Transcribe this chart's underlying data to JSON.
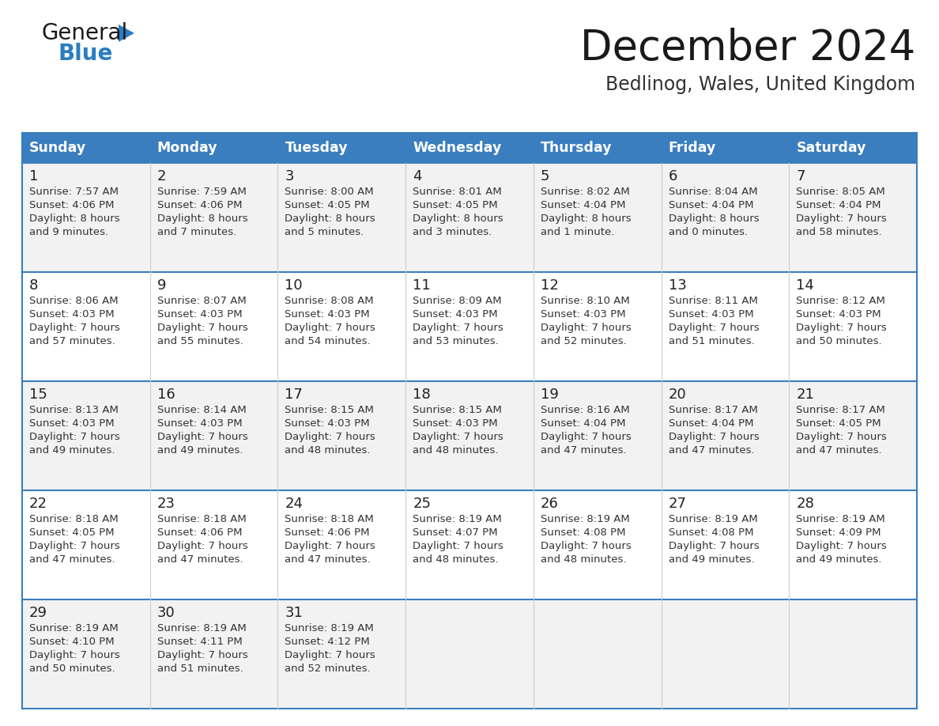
{
  "title": "December 2024",
  "subtitle": "Bedlinog, Wales, United Kingdom",
  "header_color": "#3A7EBF",
  "header_text_color": "#FFFFFF",
  "cell_bg_even": "#F2F2F2",
  "cell_bg_odd": "#FFFFFF",
  "border_color": "#3A7EBF",
  "divider_color": "#3A7EBF",
  "text_color": "#333333",
  "day_num_color": "#222222",
  "day_names": [
    "Sunday",
    "Monday",
    "Tuesday",
    "Wednesday",
    "Thursday",
    "Friday",
    "Saturday"
  ],
  "weeks": [
    [
      {
        "day": 1,
        "sunrise": "7:57 AM",
        "sunset": "4:06 PM",
        "daylight": "8 hours and 9 minutes."
      },
      {
        "day": 2,
        "sunrise": "7:59 AM",
        "sunset": "4:06 PM",
        "daylight": "8 hours and 7 minutes."
      },
      {
        "day": 3,
        "sunrise": "8:00 AM",
        "sunset": "4:05 PM",
        "daylight": "8 hours and 5 minutes."
      },
      {
        "day": 4,
        "sunrise": "8:01 AM",
        "sunset": "4:05 PM",
        "daylight": "8 hours and 3 minutes."
      },
      {
        "day": 5,
        "sunrise": "8:02 AM",
        "sunset": "4:04 PM",
        "daylight": "8 hours and 1 minute."
      },
      {
        "day": 6,
        "sunrise": "8:04 AM",
        "sunset": "4:04 PM",
        "daylight": "8 hours and 0 minutes."
      },
      {
        "day": 7,
        "sunrise": "8:05 AM",
        "sunset": "4:04 PM",
        "daylight": "7 hours and 58 minutes."
      }
    ],
    [
      {
        "day": 8,
        "sunrise": "8:06 AM",
        "sunset": "4:03 PM",
        "daylight": "7 hours and 57 minutes."
      },
      {
        "day": 9,
        "sunrise": "8:07 AM",
        "sunset": "4:03 PM",
        "daylight": "7 hours and 55 minutes."
      },
      {
        "day": 10,
        "sunrise": "8:08 AM",
        "sunset": "4:03 PM",
        "daylight": "7 hours and 54 minutes."
      },
      {
        "day": 11,
        "sunrise": "8:09 AM",
        "sunset": "4:03 PM",
        "daylight": "7 hours and 53 minutes."
      },
      {
        "day": 12,
        "sunrise": "8:10 AM",
        "sunset": "4:03 PM",
        "daylight": "7 hours and 52 minutes."
      },
      {
        "day": 13,
        "sunrise": "8:11 AM",
        "sunset": "4:03 PM",
        "daylight": "7 hours and 51 minutes."
      },
      {
        "day": 14,
        "sunrise": "8:12 AM",
        "sunset": "4:03 PM",
        "daylight": "7 hours and 50 minutes."
      }
    ],
    [
      {
        "day": 15,
        "sunrise": "8:13 AM",
        "sunset": "4:03 PM",
        "daylight": "7 hours and 49 minutes."
      },
      {
        "day": 16,
        "sunrise": "8:14 AM",
        "sunset": "4:03 PM",
        "daylight": "7 hours and 49 minutes."
      },
      {
        "day": 17,
        "sunrise": "8:15 AM",
        "sunset": "4:03 PM",
        "daylight": "7 hours and 48 minutes."
      },
      {
        "day": 18,
        "sunrise": "8:15 AM",
        "sunset": "4:03 PM",
        "daylight": "7 hours and 48 minutes."
      },
      {
        "day": 19,
        "sunrise": "8:16 AM",
        "sunset": "4:04 PM",
        "daylight": "7 hours and 47 minutes."
      },
      {
        "day": 20,
        "sunrise": "8:17 AM",
        "sunset": "4:04 PM",
        "daylight": "7 hours and 47 minutes."
      },
      {
        "day": 21,
        "sunrise": "8:17 AM",
        "sunset": "4:05 PM",
        "daylight": "7 hours and 47 minutes."
      }
    ],
    [
      {
        "day": 22,
        "sunrise": "8:18 AM",
        "sunset": "4:05 PM",
        "daylight": "7 hours and 47 minutes."
      },
      {
        "day": 23,
        "sunrise": "8:18 AM",
        "sunset": "4:06 PM",
        "daylight": "7 hours and 47 minutes."
      },
      {
        "day": 24,
        "sunrise": "8:18 AM",
        "sunset": "4:06 PM",
        "daylight": "7 hours and 47 minutes."
      },
      {
        "day": 25,
        "sunrise": "8:19 AM",
        "sunset": "4:07 PM",
        "daylight": "7 hours and 48 minutes."
      },
      {
        "day": 26,
        "sunrise": "8:19 AM",
        "sunset": "4:08 PM",
        "daylight": "7 hours and 48 minutes."
      },
      {
        "day": 27,
        "sunrise": "8:19 AM",
        "sunset": "4:08 PM",
        "daylight": "7 hours and 49 minutes."
      },
      {
        "day": 28,
        "sunrise": "8:19 AM",
        "sunset": "4:09 PM",
        "daylight": "7 hours and 49 minutes."
      }
    ],
    [
      {
        "day": 29,
        "sunrise": "8:19 AM",
        "sunset": "4:10 PM",
        "daylight": "7 hours and 50 minutes."
      },
      {
        "day": 30,
        "sunrise": "8:19 AM",
        "sunset": "4:11 PM",
        "daylight": "7 hours and 51 minutes."
      },
      {
        "day": 31,
        "sunrise": "8:19 AM",
        "sunset": "4:12 PM",
        "daylight": "7 hours and 52 minutes."
      },
      null,
      null,
      null,
      null
    ]
  ],
  "logo_color_general": "#1a1a1a",
  "logo_color_blue": "#2B7EC1",
  "logo_triangle_color": "#2B7EC1",
  "figwidth": 11.88,
  "figheight": 9.18,
  "dpi": 100
}
